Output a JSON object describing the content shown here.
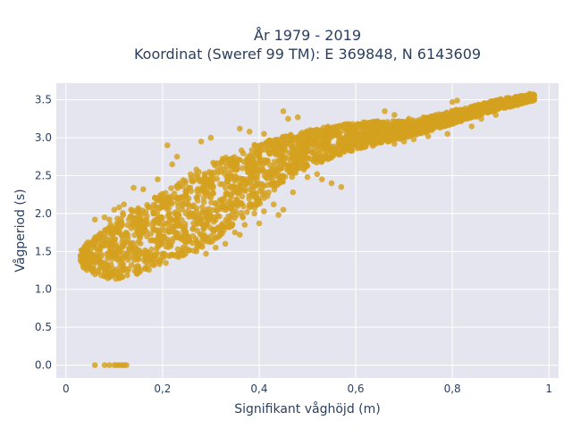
{
  "chart_data": {
    "type": "scatter",
    "title_line1": "År 1979 - 2019",
    "title_line2": "Koordinat (Sweref 99 TM): E 369848, N 6143609",
    "xlabel": "Signifikant våghöjd (m)",
    "ylabel": "Vågperiod (s)",
    "xlim": [
      -0.02,
      1.02
    ],
    "ylim": [
      -0.17,
      3.72
    ],
    "x_ticks": [
      0,
      0.2,
      0.4,
      0.6,
      0.8,
      1.0
    ],
    "x_tick_labels": [
      "0",
      "0,2",
      "0,4",
      "0,6",
      "0,8",
      "1"
    ],
    "y_ticks": [
      0,
      0.5,
      1.0,
      1.5,
      2.0,
      2.5,
      3.0,
      3.5
    ],
    "y_tick_labels": [
      "0.0",
      "0.5",
      "1.0",
      "1.5",
      "2.0",
      "2.5",
      "3.0",
      "3.5"
    ],
    "grid": true,
    "marker_color": "#d4a11e",
    "plot_background": "#e5e5ef",
    "band": [
      [
        0.03,
        1.32,
        1.52
      ],
      [
        0.05,
        1.22,
        1.65
      ],
      [
        0.08,
        1.15,
        1.78
      ],
      [
        0.1,
        1.13,
        1.92
      ],
      [
        0.12,
        1.15,
        2.02
      ],
      [
        0.15,
        1.2,
        2.1
      ],
      [
        0.18,
        1.28,
        2.22
      ],
      [
        0.2,
        1.33,
        2.3
      ],
      [
        0.23,
        1.4,
        2.42
      ],
      [
        0.25,
        1.47,
        2.5
      ],
      [
        0.28,
        1.55,
        2.58
      ],
      [
        0.3,
        1.62,
        2.66
      ],
      [
        0.33,
        1.75,
        2.75
      ],
      [
        0.35,
        1.85,
        2.8
      ],
      [
        0.38,
        2.0,
        2.88
      ],
      [
        0.4,
        2.12,
        2.93
      ],
      [
        0.43,
        2.3,
        2.98
      ],
      [
        0.45,
        2.42,
        3.02
      ],
      [
        0.48,
        2.52,
        3.06
      ],
      [
        0.5,
        2.6,
        3.1
      ],
      [
        0.53,
        2.68,
        3.13
      ],
      [
        0.55,
        2.74,
        3.16
      ],
      [
        0.58,
        2.8,
        3.18
      ],
      [
        0.6,
        2.84,
        3.2
      ],
      [
        0.63,
        2.88,
        3.21
      ],
      [
        0.65,
        2.92,
        3.22
      ],
      [
        0.68,
        2.96,
        3.22
      ],
      [
        0.7,
        3.0,
        3.22
      ],
      [
        0.73,
        3.04,
        3.24
      ],
      [
        0.75,
        3.08,
        3.28
      ],
      [
        0.78,
        3.14,
        3.32
      ],
      [
        0.8,
        3.18,
        3.36
      ],
      [
        0.83,
        3.24,
        3.4
      ],
      [
        0.85,
        3.28,
        3.43
      ],
      [
        0.88,
        3.34,
        3.48
      ],
      [
        0.9,
        3.38,
        3.51
      ],
      [
        0.93,
        3.42,
        3.54
      ],
      [
        0.95,
        3.46,
        3.56
      ],
      [
        0.97,
        3.49,
        3.58
      ]
    ],
    "outliers": [
      [
        0.06,
        1.92
      ],
      [
        0.08,
        1.95
      ],
      [
        0.09,
        1.92
      ],
      [
        0.1,
        2.05
      ],
      [
        0.11,
        2.08
      ],
      [
        0.12,
        2.12
      ],
      [
        0.11,
        1.85
      ],
      [
        0.13,
        1.92
      ],
      [
        0.15,
        2.05
      ],
      [
        0.16,
        2.32
      ],
      [
        0.14,
        2.34
      ],
      [
        0.19,
        2.45
      ],
      [
        0.22,
        2.65
      ],
      [
        0.23,
        2.75
      ],
      [
        0.21,
        2.9
      ],
      [
        0.28,
        2.95
      ],
      [
        0.3,
        3.0
      ],
      [
        0.36,
        3.12
      ],
      [
        0.41,
        3.05
      ],
      [
        0.25,
        1.62
      ],
      [
        0.3,
        1.7
      ],
      [
        0.35,
        1.75
      ],
      [
        0.39,
        2.0
      ],
      [
        0.4,
        1.87
      ],
      [
        0.43,
        2.12
      ],
      [
        0.45,
        2.05
      ],
      [
        0.27,
        2.58
      ],
      [
        0.38,
        3.08
      ],
      [
        0.42,
        2.55
      ],
      [
        0.5,
        2.48
      ],
      [
        0.53,
        2.45
      ],
      [
        0.55,
        2.4
      ],
      [
        0.57,
        2.35
      ],
      [
        0.65,
        3.08
      ],
      [
        0.68,
        2.92
      ],
      [
        0.7,
        2.95
      ],
      [
        0.72,
        2.98
      ],
      [
        0.75,
        3.02
      ],
      [
        0.79,
        3.05
      ],
      [
        0.84,
        3.15
      ],
      [
        0.86,
        3.25
      ],
      [
        0.89,
        3.3
      ],
      [
        0.92,
        3.42
      ],
      [
        0.96,
        3.58
      ],
      [
        0.81,
        3.49
      ],
      [
        0.8,
        3.47
      ],
      [
        0.86,
        3.38
      ],
      [
        0.45,
        3.35
      ],
      [
        0.48,
        3.27
      ],
      [
        0.46,
        3.25
      ],
      [
        0.66,
        3.35
      ],
      [
        0.68,
        3.3
      ],
      [
        0.56,
        3.15
      ],
      [
        0.58,
        3.18
      ],
      [
        0.62,
        3.2
      ],
      [
        0.6,
        3.13
      ],
      [
        0.71,
        3.25
      ],
      [
        0.74,
        3.27
      ],
      [
        0.78,
        3.22
      ],
      [
        0.83,
        3.3
      ],
      [
        0.27,
        1.5
      ],
      [
        0.31,
        1.55
      ],
      [
        0.33,
        1.6
      ],
      [
        0.36,
        1.72
      ],
      [
        0.29,
        1.47
      ],
      [
        0.37,
        1.85
      ],
      [
        0.41,
        2.03
      ],
      [
        0.47,
        2.28
      ],
      [
        0.52,
        2.52
      ],
      [
        0.44,
        1.98
      ]
    ],
    "zero_points": [
      [
        0.06,
        0
      ],
      [
        0.08,
        0
      ],
      [
        0.09,
        0
      ],
      [
        0.1,
        0
      ],
      [
        0.105,
        0
      ],
      [
        0.11,
        0
      ],
      [
        0.115,
        0
      ],
      [
        0.12,
        0
      ],
      [
        0.125,
        0
      ]
    ]
  }
}
